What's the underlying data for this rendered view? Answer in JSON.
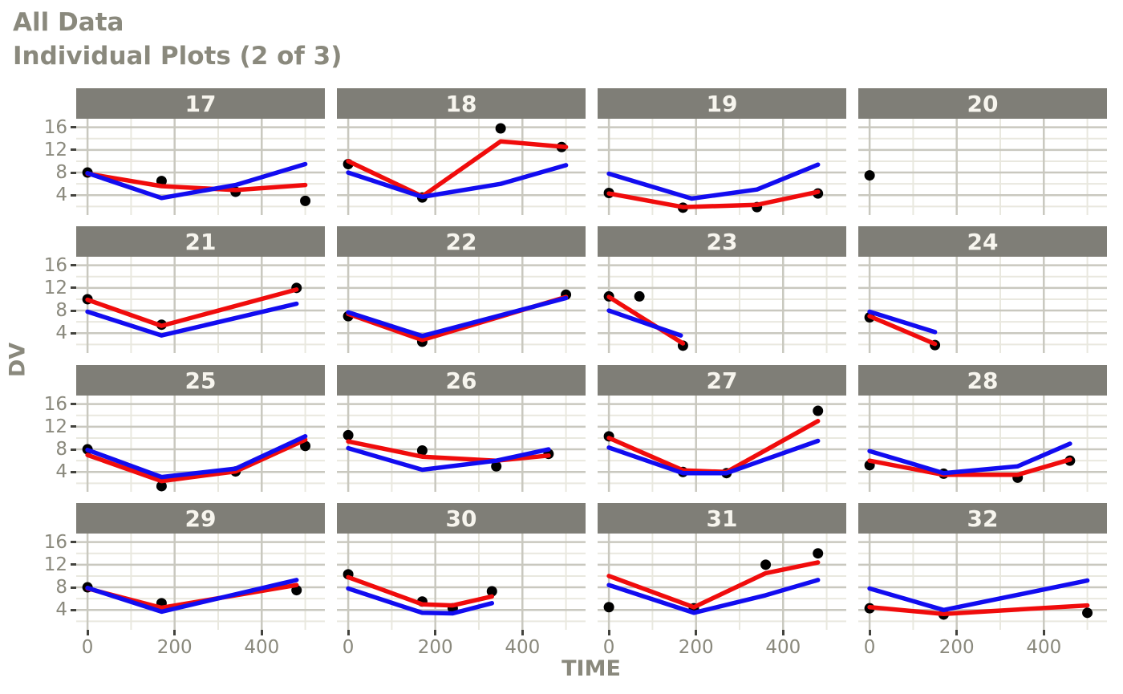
{
  "title": "All Data",
  "subtitle": "Individual Plots (2 of 3)",
  "colors": {
    "title_text": "#8a897d",
    "axis_text": "#8a897d",
    "tick_mark": "#43433e",
    "strip_bg": "#7f7e77",
    "strip_text": "#f7f5ee",
    "grid_major": "#c9c8bf",
    "grid_minor": "#e9e8df",
    "pred_line_red": "#f00c0c",
    "ipred_line_blue": "#120cf0",
    "obs_point": "#000000",
    "background": "#ffffff"
  },
  "chart_data": {
    "type": "line",
    "title": "All Data",
    "subtitle": "Individual Plots (2 of 3)",
    "xlabel": "TIME",
    "ylabel": "DV",
    "x_ticks": [
      0,
      200,
      400
    ],
    "x_minor_gridlines": [
      100,
      300,
      500
    ],
    "x_range": [
      -26,
      545
    ],
    "y_ticks": [
      4,
      8,
      12,
      16
    ],
    "y_minor_gridlines": [
      2,
      6,
      10,
      14
    ],
    "y_range": [
      0.5,
      17.5
    ],
    "grid": "on",
    "legend": "none",
    "series_roles": {
      "points": "observed",
      "red_line": "population prediction",
      "blue_line": "individual prediction"
    },
    "facets": [
      {
        "label": "17",
        "points": [
          [
            0,
            8
          ],
          [
            170,
            6.5
          ],
          [
            340,
            4.6
          ],
          [
            500,
            3
          ]
        ],
        "red_line": [
          [
            0,
            7.8
          ],
          [
            170,
            5.6
          ],
          [
            340,
            4.9
          ],
          [
            500,
            5.8
          ]
        ],
        "blue_line": [
          [
            0,
            7.9
          ],
          [
            170,
            3.5
          ],
          [
            340,
            5.8
          ],
          [
            500,
            9.5
          ]
        ]
      },
      {
        "label": "18",
        "points": [
          [
            0,
            9.5
          ],
          [
            170,
            3.6
          ],
          [
            350,
            15.8
          ],
          [
            490,
            12.5
          ]
        ],
        "red_line": [
          [
            0,
            10
          ],
          [
            170,
            3.8
          ],
          [
            350,
            13.5
          ],
          [
            500,
            12.5
          ]
        ],
        "blue_line": [
          [
            0,
            8
          ],
          [
            170,
            3.7
          ],
          [
            350,
            6
          ],
          [
            500,
            9.3
          ]
        ]
      },
      {
        "label": "19",
        "points": [
          [
            0,
            4.4
          ],
          [
            170,
            1.8
          ],
          [
            340,
            1.9
          ],
          [
            480,
            4.3
          ]
        ],
        "red_line": [
          [
            0,
            4.3
          ],
          [
            170,
            1.9
          ],
          [
            340,
            2.3
          ],
          [
            480,
            4.6
          ]
        ],
        "blue_line": [
          [
            0,
            7.8
          ],
          [
            190,
            3.4
          ],
          [
            340,
            5
          ],
          [
            480,
            9.4
          ]
        ]
      },
      {
        "label": "20",
        "points": [
          [
            0,
            7.5
          ]
        ],
        "red_line": [],
        "blue_line": []
      },
      {
        "label": "21",
        "points": [
          [
            0,
            10
          ],
          [
            170,
            5.5
          ],
          [
            480,
            12
          ]
        ],
        "red_line": [
          [
            0,
            9.9
          ],
          [
            170,
            5.3
          ],
          [
            480,
            11.7
          ]
        ],
        "blue_line": [
          [
            0,
            7.8
          ],
          [
            170,
            3.6
          ],
          [
            480,
            9.2
          ]
        ]
      },
      {
        "label": "22",
        "points": [
          [
            0,
            7
          ],
          [
            170,
            2.5
          ],
          [
            500,
            10.8
          ]
        ],
        "red_line": [
          [
            0,
            7.4
          ],
          [
            170,
            2.8
          ],
          [
            500,
            10.4
          ]
        ],
        "blue_line": [
          [
            0,
            7.7
          ],
          [
            170,
            3.5
          ],
          [
            500,
            10.2
          ]
        ]
      },
      {
        "label": "23",
        "points": [
          [
            0,
            10.5
          ],
          [
            70,
            10.5
          ],
          [
            170,
            1.8
          ]
        ],
        "red_line": [
          [
            0,
            10.4
          ],
          [
            170,
            2.2
          ]
        ],
        "blue_line": [
          [
            0,
            8
          ],
          [
            165,
            3.6
          ]
        ]
      },
      {
        "label": "24",
        "points": [
          [
            0,
            6.8
          ],
          [
            150,
            1.9
          ]
        ],
        "red_line": [
          [
            0,
            7
          ],
          [
            150,
            2.1
          ]
        ],
        "blue_line": [
          [
            0,
            7.8
          ],
          [
            150,
            4.2
          ]
        ]
      },
      {
        "label": "25",
        "points": [
          [
            0,
            8
          ],
          [
            170,
            1.5
          ],
          [
            340,
            4.1
          ],
          [
            500,
            8.6
          ]
        ],
        "red_line": [
          [
            0,
            7
          ],
          [
            170,
            2.4
          ],
          [
            340,
            4.1
          ],
          [
            500,
            9.7
          ]
        ],
        "blue_line": [
          [
            0,
            7.9
          ],
          [
            170,
            3.1
          ],
          [
            340,
            4.6
          ],
          [
            500,
            10.3
          ]
        ]
      },
      {
        "label": "26",
        "points": [
          [
            0,
            10.5
          ],
          [
            170,
            7.8
          ],
          [
            340,
            5
          ],
          [
            460,
            7.2
          ]
        ],
        "red_line": [
          [
            0,
            9.4
          ],
          [
            170,
            6.7
          ],
          [
            340,
            6
          ],
          [
            460,
            6.9
          ]
        ],
        "blue_line": [
          [
            0,
            8.2
          ],
          [
            170,
            4.4
          ],
          [
            340,
            6
          ],
          [
            460,
            8
          ]
        ]
      },
      {
        "label": "27",
        "points": [
          [
            0,
            10.3
          ],
          [
            170,
            4
          ],
          [
            270,
            3.8
          ],
          [
            480,
            14.8
          ]
        ],
        "red_line": [
          [
            0,
            10
          ],
          [
            170,
            4.3
          ],
          [
            270,
            4
          ],
          [
            480,
            13
          ]
        ],
        "blue_line": [
          [
            0,
            8.3
          ],
          [
            170,
            3.8
          ],
          [
            270,
            3.8
          ],
          [
            480,
            9.5
          ]
        ]
      },
      {
        "label": "28",
        "points": [
          [
            0,
            5.2
          ],
          [
            170,
            3.7
          ],
          [
            340,
            3
          ],
          [
            460,
            6
          ]
        ],
        "red_line": [
          [
            0,
            6
          ],
          [
            170,
            3.5
          ],
          [
            340,
            3.5
          ],
          [
            460,
            6.2
          ]
        ],
        "blue_line": [
          [
            0,
            7.7
          ],
          [
            170,
            3.8
          ],
          [
            340,
            5
          ],
          [
            460,
            9
          ]
        ]
      },
      {
        "label": "29",
        "points": [
          [
            0,
            8
          ],
          [
            170,
            5.2
          ],
          [
            480,
            7.5
          ]
        ],
        "red_line": [
          [
            0,
            7.8
          ],
          [
            170,
            4.4
          ],
          [
            480,
            8.4
          ]
        ],
        "blue_line": [
          [
            0,
            7.9
          ],
          [
            170,
            3.7
          ],
          [
            480,
            9.3
          ]
        ]
      },
      {
        "label": "30",
        "points": [
          [
            0,
            10.3
          ],
          [
            170,
            5.5
          ],
          [
            240,
            4.3
          ],
          [
            330,
            7.3
          ]
        ],
        "red_line": [
          [
            0,
            9.8
          ],
          [
            170,
            5
          ],
          [
            240,
            4.8
          ],
          [
            330,
            6.4
          ]
        ],
        "blue_line": [
          [
            0,
            7.8
          ],
          [
            170,
            3.5
          ],
          [
            240,
            3.4
          ],
          [
            330,
            5.2
          ]
        ]
      },
      {
        "label": "31",
        "points": [
          [
            0,
            4.5
          ],
          [
            195,
            4.3
          ],
          [
            360,
            12
          ],
          [
            480,
            14
          ]
        ],
        "red_line": [
          [
            0,
            10
          ],
          [
            195,
            4.5
          ],
          [
            360,
            10.5
          ],
          [
            480,
            12.4
          ]
        ],
        "blue_line": [
          [
            0,
            8.4
          ],
          [
            195,
            3.5
          ],
          [
            360,
            6.6
          ],
          [
            480,
            9.3
          ]
        ]
      },
      {
        "label": "32",
        "points": [
          [
            0,
            4.3
          ],
          [
            170,
            3.2
          ],
          [
            500,
            3.5
          ]
        ],
        "red_line": [
          [
            0,
            4.5
          ],
          [
            170,
            3.3
          ],
          [
            500,
            4.8
          ]
        ],
        "blue_line": [
          [
            0,
            7.8
          ],
          [
            170,
            4
          ],
          [
            500,
            9.2
          ]
        ]
      }
    ]
  }
}
